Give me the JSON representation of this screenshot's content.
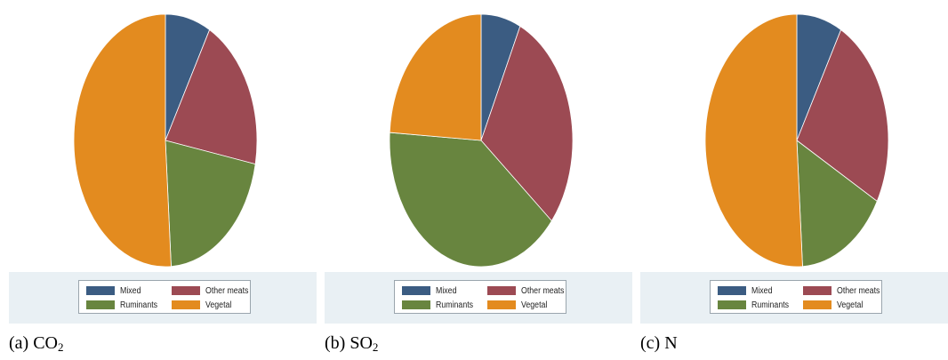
{
  "chart_data": [
    {
      "type": "pie",
      "categories": [
        "Mixed",
        "Other meats",
        "Ruminants",
        "Vegetal"
      ],
      "values": [
        8,
        20,
        21,
        51
      ],
      "title": "",
      "legend": "bottom",
      "caption": {
        "prefix": "(a) ",
        "main": "CO",
        "sub": "2"
      }
    },
    {
      "type": "pie",
      "categories": [
        "Mixed",
        "Other meats",
        "Ruminants",
        "Vegetal"
      ],
      "values": [
        7,
        29,
        40,
        24
      ],
      "title": "",
      "legend": "bottom",
      "caption": {
        "prefix": "(b) ",
        "main": "SO",
        "sub": "2"
      }
    },
    {
      "type": "pie",
      "categories": [
        "Mixed",
        "Other meats",
        "Ruminants",
        "Vegetal"
      ],
      "values": [
        8,
        25,
        16,
        51
      ],
      "title": "",
      "legend": "bottom",
      "caption": {
        "prefix": "(c) ",
        "main": "N",
        "sub": ""
      }
    }
  ],
  "colors": [
    "#3b5c82",
    "#9c4a53",
    "#68853f",
    "#e38b1f"
  ],
  "legend_labels": [
    "Mixed",
    "Other meats",
    "Ruminants",
    "Vegetal"
  ]
}
